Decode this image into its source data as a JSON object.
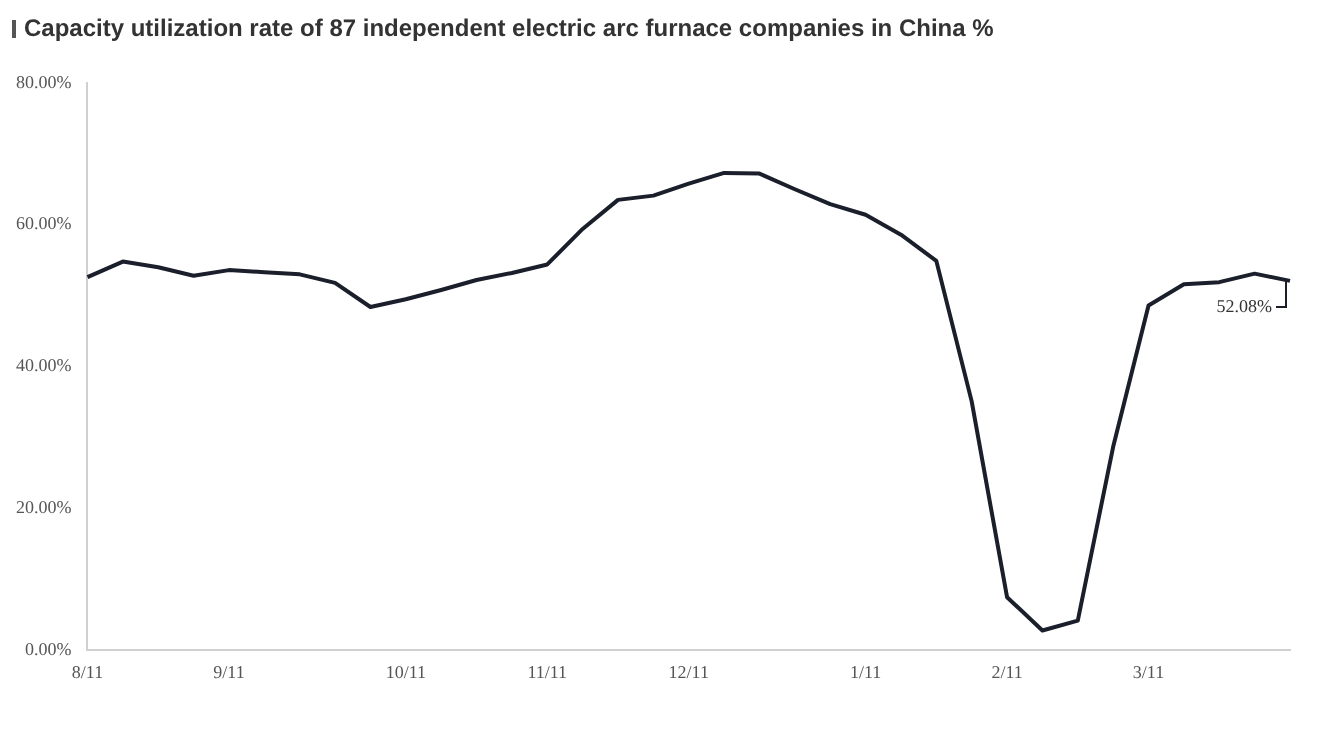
{
  "chart_data": {
    "type": "line",
    "title": "Capacity utilization rate of 87 independent electric arc furnace companies in China %",
    "categories": [
      "8/11",
      null,
      null,
      null,
      "9/11",
      null,
      null,
      null,
      null,
      "10/11",
      null,
      null,
      null,
      "11/11",
      null,
      null,
      null,
      "12/11",
      null,
      null,
      null,
      null,
      "1/11",
      null,
      null,
      null,
      "2/11",
      null,
      null,
      null,
      "3/11",
      null,
      null,
      null,
      null
    ],
    "series": [
      {
        "color": "#1a1f2b",
        "values": [
          52.6,
          54.8,
          54.0,
          52.8,
          53.6,
          53.3,
          53.0,
          51.8,
          48.4,
          49.5,
          50.8,
          52.2,
          53.2,
          54.4,
          59.4,
          63.5,
          64.1,
          65.8,
          67.3,
          67.2,
          65.0,
          62.9,
          61.4,
          58.6,
          54.9,
          35.1,
          7.5,
          2.8,
          4.2,
          28.7,
          48.6,
          51.6,
          51.9,
          53.1,
          52.08
        ]
      }
    ],
    "ylim": [
      0,
      80
    ],
    "yticks": [
      {
        "value": 0,
        "label": "0.00%"
      },
      {
        "value": 20,
        "label": "20.00%"
      },
      {
        "value": 40,
        "label": "40.00%"
      },
      {
        "value": 60,
        "label": "60.00%"
      },
      {
        "value": 80,
        "label": "80.00%"
      }
    ],
    "annotations": [
      {
        "text": "52.08%",
        "y": 52.08
      }
    ],
    "grid": false,
    "legend": false,
    "marker": "none",
    "line_style": "solid"
  }
}
